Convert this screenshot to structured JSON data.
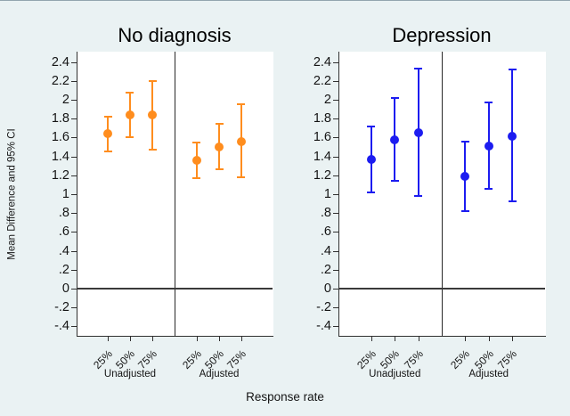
{
  "figure": {
    "bg_color": "#EAF2F3",
    "plot_bg": "#FFFFFF",
    "axis_color": "#303030",
    "text_color": "#141414"
  },
  "chart_data": {
    "type": "scatter",
    "subtype": "point-estimate-with-95ci-errorbars",
    "xlabel": "Response rate",
    "ylabel": "Mean Difference and 95% CI",
    "ylim": [
      -0.5,
      2.51
    ],
    "ref_line": 0,
    "grid": false,
    "ytick_labels": [
      "2.4",
      "2.2",
      "2",
      "1.8",
      "1.6",
      "1.4",
      "1.2",
      "1",
      ".8",
      ".6",
      ".4",
      ".2",
      "0",
      "-.2",
      "-.4"
    ],
    "ytick_values": [
      2.4,
      2.2,
      2.0,
      1.8,
      1.6,
      1.4,
      1.2,
      1.0,
      0.8,
      0.6,
      0.4,
      0.2,
      0.0,
      -0.2,
      -0.4
    ],
    "x_categories": [
      "25%",
      "50%",
      "75%"
    ],
    "group_labels": [
      "Unadjusted",
      "Adjusted"
    ],
    "panels": [
      {
        "title": "No diagnosis",
        "color": "#FF8D1E",
        "series": [
          {
            "group": "Unadjusted",
            "points": [
              {
                "x": "25%",
                "est": 1.64,
                "lo": 1.45,
                "hi": 1.82
              },
              {
                "x": "50%",
                "est": 1.84,
                "lo": 1.6,
                "hi": 2.08
              },
              {
                "x": "75%",
                "est": 1.84,
                "lo": 1.47,
                "hi": 2.2
              }
            ]
          },
          {
            "group": "Adjusted",
            "points": [
              {
                "x": "25%",
                "est": 1.36,
                "lo": 1.17,
                "hi": 1.55
              },
              {
                "x": "50%",
                "est": 1.5,
                "lo": 1.26,
                "hi": 1.75
              },
              {
                "x": "75%",
                "est": 1.56,
                "lo": 1.18,
                "hi": 1.95
              }
            ]
          }
        ]
      },
      {
        "title": "Depression",
        "color": "#1C1CF0",
        "series": [
          {
            "group": "Unadjusted",
            "points": [
              {
                "x": "25%",
                "est": 1.37,
                "lo": 1.02,
                "hi": 1.72
              },
              {
                "x": "50%",
                "est": 1.58,
                "lo": 1.14,
                "hi": 2.02
              },
              {
                "x": "75%",
                "est": 1.65,
                "lo": 0.98,
                "hi": 2.33
              }
            ]
          },
          {
            "group": "Adjusted",
            "points": [
              {
                "x": "25%",
                "est": 1.19,
                "lo": 0.82,
                "hi": 1.56
              },
              {
                "x": "50%",
                "est": 1.51,
                "lo": 1.06,
                "hi": 1.97
              },
              {
                "x": "75%",
                "est": 1.61,
                "lo": 0.92,
                "hi": 2.32
              }
            ]
          }
        ]
      }
    ]
  }
}
